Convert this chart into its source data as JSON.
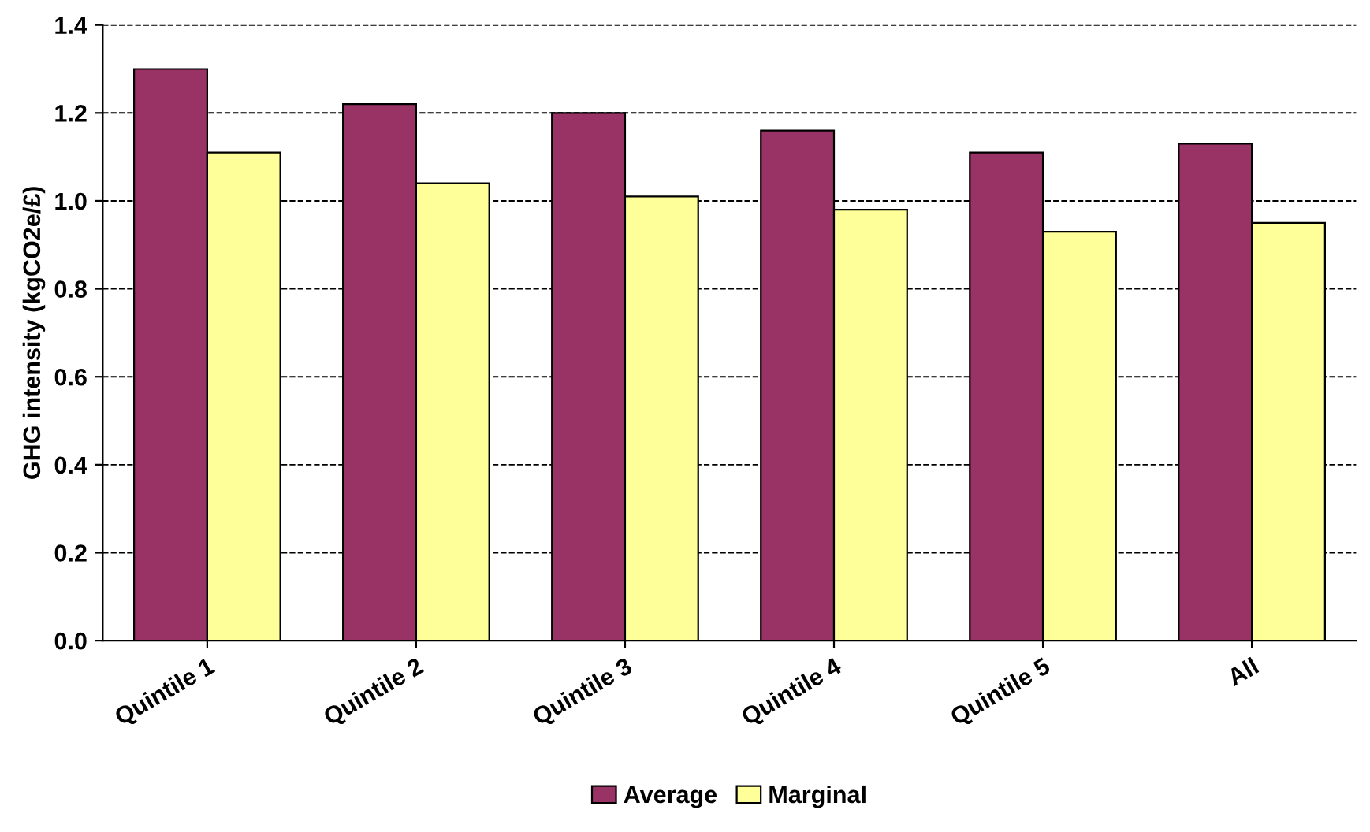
{
  "chart_data": {
    "type": "bar",
    "ylabel": "GHG intensity (kgCO2e/£)",
    "categories": [
      "Quintile 1",
      "Quintile 2",
      "Quintile 3",
      "Quintile 4",
      "Quintile 5",
      "All"
    ],
    "series": [
      {
        "name": "Average",
        "color": "#993366",
        "values": [
          1.3,
          1.22,
          1.2,
          1.16,
          1.11,
          1.13
        ]
      },
      {
        "name": "Marginal",
        "color": "#ffff99",
        "values": [
          1.11,
          1.04,
          1.01,
          0.98,
          0.93,
          0.95
        ]
      }
    ],
    "ylim": [
      0,
      1.4
    ],
    "yticks": [
      {
        "value": 0,
        "label": "0.0"
      },
      {
        "value": 0.2,
        "label": "0.2"
      },
      {
        "value": 0.4,
        "label": "0.4"
      },
      {
        "value": 0.6,
        "label": "0.6"
      },
      {
        "value": 0.8,
        "label": "0.8"
      },
      {
        "value": 1,
        "label": "1.0"
      },
      {
        "value": 1.2,
        "label": "1.2"
      },
      {
        "value": 1.4,
        "label": "1.4"
      }
    ],
    "grid": "y",
    "legend": "bottom"
  }
}
